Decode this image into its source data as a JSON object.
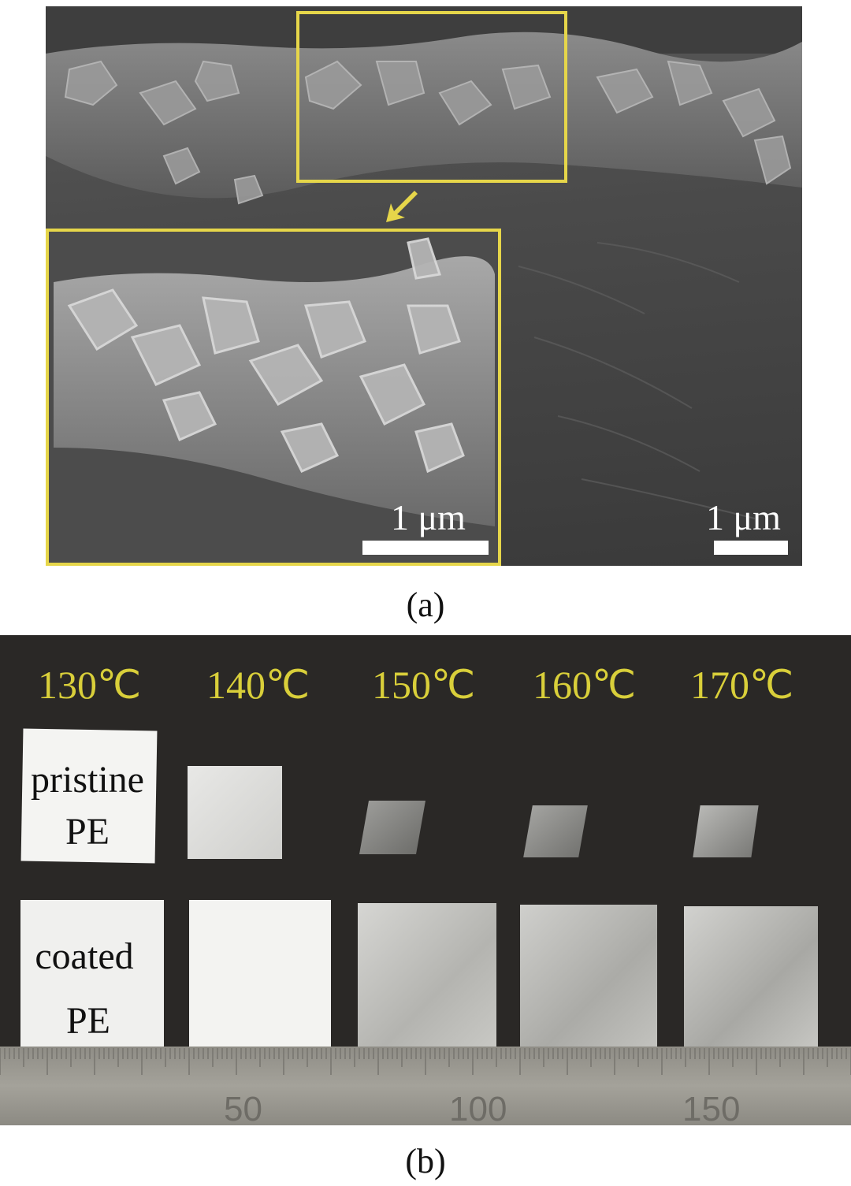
{
  "figure": {
    "panel_a": {
      "caption": "(a)",
      "inset_scale_label": "1 μm",
      "main_scale_label": "1 μm",
      "highlight_color": "#e6d64a"
    },
    "panel_b": {
      "caption": "(b)",
      "temperatures": [
        "130℃",
        "140℃",
        "150℃",
        "160℃",
        "170℃"
      ],
      "row_labels": {
        "pristine_line1": "pristine",
        "pristine_line2": "PE",
        "coated_line1": "coated",
        "coated_line2": "PE"
      },
      "ruler_numbers": [
        "50",
        "100",
        "150"
      ],
      "temperature_color": "#d9cf3a"
    }
  }
}
